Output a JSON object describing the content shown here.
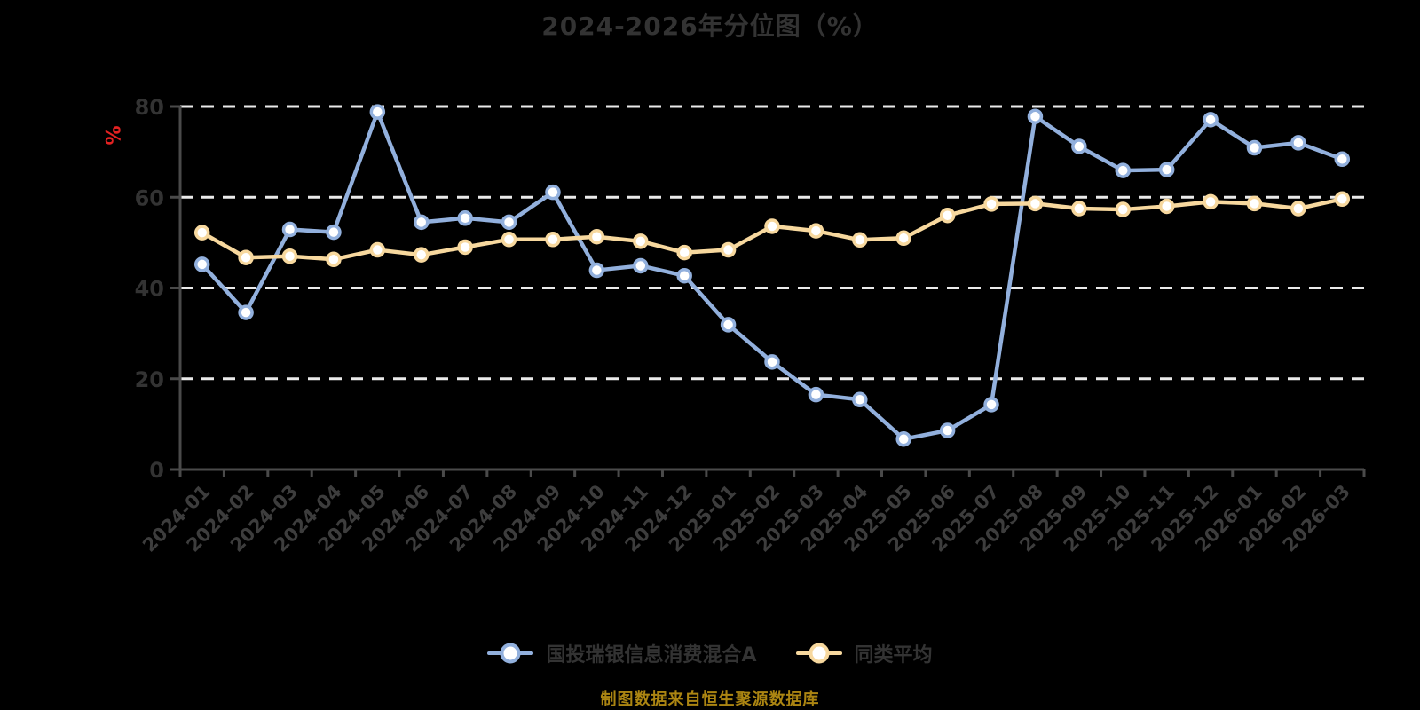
{
  "title": "2024-2026年分位图（%）",
  "y_axis_unit": "%",
  "source_note": "制图数据来自恒生聚源数据库",
  "colors": {
    "background": "#000000",
    "title_text": "#333333",
    "axis": "#4a4a4a",
    "grid": "#eaeaea",
    "y_unit_label": "#e42222",
    "source_note_text": "#ab8512",
    "fund_series": "#92b0dd",
    "average_series": "#f7d89e",
    "marker_fill": "#ffffff"
  },
  "legend": [
    {
      "label": "国投瑞银信息消费混合A",
      "color": "#92b0dd"
    },
    {
      "label": "同类平均",
      "color": "#f7d89e"
    }
  ],
  "chart_data": {
    "type": "line",
    "title": "2024-2026年分位图（%）",
    "ylabel": "%",
    "xlabel": "",
    "ylim": [
      0,
      80
    ],
    "yticks": [
      0,
      20,
      40,
      60,
      80
    ],
    "grid": "horizontal dashed",
    "legend_position": "bottom",
    "categories": [
      "2024-01",
      "2024-02",
      "2024-03",
      "2024-04",
      "2024-05",
      "2024-06",
      "2024-07",
      "2024-08",
      "2024-09",
      "2024-10",
      "2024-11",
      "2024-12",
      "2025-01",
      "2025-02",
      "2025-03",
      "2025-04",
      "2025-05",
      "2025-06",
      "2025-07",
      "2025-08",
      "2025-09",
      "2025-10",
      "2025-11",
      "2025-12",
      "2026-01",
      "2026-02",
      "2026-03"
    ],
    "series": [
      {
        "name": "国投瑞银信息消费混合A",
        "color": "#92b0dd",
        "values": [
          45.2,
          34.6,
          52.9,
          52.3,
          78.8,
          54.5,
          55.4,
          54.5,
          61.1,
          43.9,
          44.9,
          42.7,
          31.9,
          23.7,
          16.5,
          15.4,
          6.7,
          8.6,
          14.3,
          77.8,
          71.2,
          65.9,
          66.1,
          77.1,
          70.9,
          72.0,
          68.4
        ]
      },
      {
        "name": "同类平均",
        "color": "#f7d89e",
        "values": [
          52.2,
          46.7,
          47.0,
          46.3,
          48.4,
          47.3,
          49.0,
          50.7,
          50.7,
          51.3,
          50.3,
          47.8,
          48.4,
          53.6,
          52.6,
          50.6,
          51.0,
          56.0,
          58.5,
          58.6,
          57.5,
          57.3,
          58.0,
          59.0,
          58.6,
          57.5,
          59.6
        ]
      }
    ]
  }
}
